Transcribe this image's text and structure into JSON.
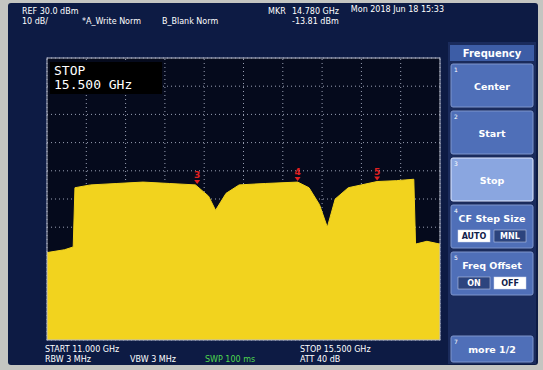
{
  "header": {
    "ref": "REF 30.0 dBm",
    "scale": "10 dB/",
    "trace_a": "*A_Write Norm",
    "trace_b": "B_Blank Norm",
    "marker_label": "MKR",
    "marker_freq": "14.780 GHz",
    "marker_level": "-13.81 dBm",
    "datetime": "Mon 2018 Jun 18 15:33"
  },
  "active_entry": {
    "label": "STOP",
    "value": "15.500 GHz"
  },
  "footer": {
    "start": "START 11.000 GHz",
    "rbw": "RBW 3 MHz",
    "vbw": "VBW 3 MHz",
    "swp": "SWP 100 ms",
    "stop": "STOP 15.500 GHz",
    "att": "ATT 40 dB"
  },
  "menu": {
    "title": "Frequency",
    "keys": [
      {
        "number": "1",
        "label": "Center"
      },
      {
        "number": "2",
        "label": "Start"
      },
      {
        "number": "3",
        "label": "Stop",
        "active": true
      },
      {
        "number": "4",
        "label": "CF Step Size",
        "options": [
          "AUTO",
          "MNL"
        ],
        "selected": "AUTO"
      },
      {
        "number": "5",
        "label": "Freq Offset",
        "options": [
          "ON",
          "OFF"
        ],
        "selected": "OFF"
      },
      {
        "number": "7",
        "label": "more 1/2"
      }
    ]
  },
  "chart_data": {
    "type": "area",
    "color": "#f2d31e",
    "x": [
      11.0,
      11.2,
      11.3,
      11.32,
      11.5,
      11.8,
      12.1,
      12.4,
      12.7,
      12.85,
      12.93,
      13.05,
      13.2,
      13.5,
      13.87,
      14.0,
      14.12,
      14.21,
      14.3,
      14.45,
      14.78,
      15.0,
      15.2,
      15.22,
      15.35,
      15.5
    ],
    "values": [
      -39,
      -38,
      -37,
      -16,
      -15,
      -14.5,
      -14,
      -14.5,
      -15,
      -19,
      -24,
      -18,
      -15,
      -14.5,
      -14,
      -16,
      -22,
      -30,
      -20,
      -16,
      -13.81,
      -13.5,
      -13,
      -36,
      -35,
      -36
    ],
    "annotations": [
      {
        "text": "3",
        "x": 12.72,
        "y": -15
      },
      {
        "text": "4",
        "x": 13.87,
        "y": -14
      },
      {
        "text": "5",
        "x": 14.78,
        "y": -13.81
      }
    ],
    "xlim": [
      11.0,
      15.5
    ],
    "ylim": [
      -70,
      30
    ],
    "xticks": [
      11.0,
      11.45,
      11.9,
      12.35,
      12.8,
      13.25,
      13.7,
      14.15,
      14.6,
      15.05,
      15.5
    ],
    "yticks": [
      -70,
      -60,
      -50,
      -40,
      -30,
      -20,
      -10,
      0,
      10,
      20,
      30
    ],
    "grid": true,
    "tick_labels": false
  }
}
